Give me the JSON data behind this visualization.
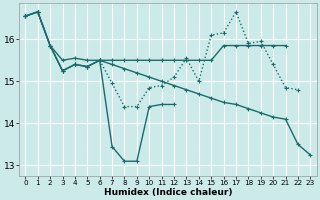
{
  "title": "",
  "xlabel": "Humidex (Indice chaleur)",
  "bg_color": "#cceaea",
  "grid_color": "#ffffff",
  "line_color": "#1a6b6b",
  "xlim": [
    -0.5,
    23.5
  ],
  "ylim": [
    12.75,
    16.85
  ],
  "yticks": [
    13,
    14,
    15,
    16
  ],
  "xticks": [
    0,
    1,
    2,
    3,
    4,
    5,
    6,
    7,
    8,
    9,
    10,
    11,
    12,
    13,
    14,
    15,
    16,
    17,
    18,
    19,
    20,
    21,
    22,
    23
  ],
  "series": [
    {
      "y": [
        16.55,
        16.65,
        15.85,
        15.25,
        15.4,
        15.35,
        15.5,
        15.5,
        15.5,
        15.5,
        15.5,
        15.5,
        15.5,
        15.5,
        15.5,
        15.5,
        15.85,
        15.85,
        15.85,
        15.85,
        15.85,
        15.85,
        null,
        null
      ],
      "style": "-",
      "lw": 1.0
    },
    {
      "y": [
        16.55,
        16.65,
        15.85,
        15.5,
        15.55,
        15.5,
        15.5,
        15.4,
        15.3,
        15.2,
        15.1,
        15.0,
        14.9,
        14.8,
        14.7,
        14.6,
        14.5,
        14.45,
        14.35,
        14.25,
        14.15,
        14.1,
        13.5,
        13.25
      ],
      "style": "-",
      "lw": 1.0
    },
    {
      "y": [
        16.55,
        16.65,
        15.85,
        15.25,
        15.4,
        15.35,
        15.5,
        14.95,
        14.4,
        14.4,
        14.85,
        14.9,
        15.1,
        15.55,
        15.0,
        16.1,
        16.15,
        16.65,
        15.9,
        15.95,
        15.4,
        14.85,
        14.8,
        null
      ],
      "style": ":",
      "lw": 1.0
    },
    {
      "y": [
        16.55,
        16.65,
        15.85,
        15.25,
        15.4,
        15.35,
        15.5,
        13.45,
        13.1,
        13.1,
        14.4,
        14.45,
        14.45,
        null,
        null,
        null,
        null,
        null,
        null,
        null,
        null,
        null,
        null,
        null
      ],
      "style": "-",
      "lw": 1.0
    }
  ]
}
